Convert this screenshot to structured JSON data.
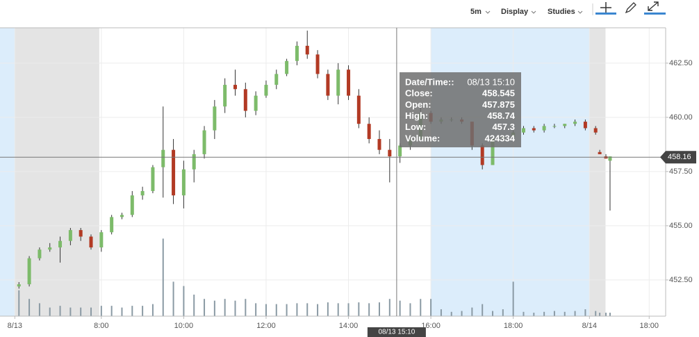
{
  "toolbar": {
    "interval": "5m",
    "display": "Display",
    "studies": "Studies"
  },
  "chart_data": {
    "type": "candlestick",
    "up_color": "#7dbb6a",
    "down_color": "#b23a24",
    "volume_color": "#8a9aa4",
    "xlim": [
      5.54,
      21.7
    ],
    "ylim": [
      450.83,
      464.13
    ],
    "vlim": [
      0,
      100
    ],
    "xticks": [
      {
        "value": 5.9,
        "label": "8/13"
      },
      {
        "value": 8,
        "label": "8:00"
      },
      {
        "value": 10,
        "label": "10:00"
      },
      {
        "value": 12,
        "label": "12:00"
      },
      {
        "value": 14,
        "label": "14:00"
      },
      {
        "value": 16,
        "label": "16:00"
      },
      {
        "value": 18,
        "label": "18:00"
      },
      {
        "value": 19.85,
        "label": "8/14"
      },
      {
        "value": 21.3,
        "label": "18:00"
      }
    ],
    "yticks": [
      {
        "value": 452.5,
        "label": "452.50"
      },
      {
        "value": 455,
        "label": "455.00"
      },
      {
        "value": 457.5,
        "label": "457.50"
      },
      {
        "value": 460,
        "label": "460.00"
      },
      {
        "value": 462.5,
        "label": "462.50"
      }
    ],
    "grid": true,
    "shading": [
      {
        "from": 5.54,
        "to": 5.9,
        "color": "#dcedfb"
      },
      {
        "from": 5.9,
        "to": 7.95,
        "color": "#e4e4e4"
      },
      {
        "from": 16,
        "to": 19.85,
        "color": "#dcedfb"
      },
      {
        "from": 19.85,
        "to": 20.24,
        "color": "#e4e4e4"
      }
    ],
    "candles": [
      [
        6.0,
        452.2,
        452.4,
        452.1,
        452.3,
        30
      ],
      [
        6.25,
        452.3,
        453.6,
        452.2,
        453.5,
        20
      ],
      [
        6.5,
        453.5,
        454.0,
        453.4,
        453.9,
        15
      ],
      [
        6.75,
        453.9,
        454.2,
        453.8,
        454.0,
        10
      ],
      [
        7.0,
        454.0,
        454.5,
        453.3,
        454.3,
        12
      ],
      [
        7.25,
        454.3,
        454.9,
        454.1,
        454.8,
        10
      ],
      [
        7.5,
        454.8,
        454.9,
        454.3,
        454.5,
        10
      ],
      [
        7.75,
        454.5,
        454.6,
        453.9,
        454.0,
        10
      ],
      [
        8.0,
        454.0,
        454.8,
        453.8,
        454.7,
        12
      ],
      [
        8.25,
        454.7,
        455.5,
        454.6,
        455.4,
        12
      ],
      [
        8.5,
        455.4,
        455.6,
        455.3,
        455.5,
        10
      ],
      [
        8.75,
        455.5,
        456.6,
        455.4,
        456.4,
        12
      ],
      [
        9.0,
        456.4,
        456.8,
        456.2,
        456.6,
        12
      ],
      [
        9.25,
        456.6,
        457.8,
        456.5,
        457.7,
        14
      ],
      [
        9.5,
        457.7,
        460.5,
        456.3,
        458.5,
        90
      ],
      [
        9.75,
        458.5,
        459.0,
        456.0,
        456.4,
        40
      ],
      [
        10.0,
        456.4,
        458.0,
        455.8,
        457.6,
        35
      ],
      [
        10.25,
        457.6,
        458.5,
        457.0,
        458.3,
        25
      ],
      [
        10.5,
        458.3,
        459.6,
        458.1,
        459.4,
        20
      ],
      [
        10.75,
        459.4,
        460.8,
        459.0,
        460.5,
        18
      ],
      [
        11.0,
        460.5,
        461.8,
        460.2,
        461.5,
        20
      ],
      [
        11.25,
        461.5,
        462.2,
        461.0,
        461.3,
        18
      ],
      [
        11.5,
        461.3,
        461.6,
        460.0,
        460.3,
        20
      ],
      [
        11.75,
        460.3,
        461.2,
        460.1,
        461.0,
        15
      ],
      [
        12.0,
        461.0,
        461.7,
        460.9,
        461.5,
        14
      ],
      [
        12.25,
        461.5,
        462.2,
        461.3,
        462.0,
        14
      ],
      [
        12.5,
        462.0,
        462.7,
        461.9,
        462.6,
        14
      ],
      [
        12.75,
        462.6,
        463.5,
        462.4,
        463.3,
        15
      ],
      [
        13.0,
        463.3,
        464.0,
        462.7,
        462.9,
        15
      ],
      [
        13.25,
        462.9,
        463.1,
        461.8,
        462.0,
        14
      ],
      [
        13.5,
        462.0,
        462.2,
        460.8,
        461.0,
        16
      ],
      [
        13.75,
        461.0,
        462.5,
        460.6,
        462.2,
        15
      ],
      [
        14.0,
        462.2,
        462.4,
        460.8,
        461.0,
        15
      ],
      [
        14.25,
        461.0,
        461.3,
        459.5,
        459.7,
        16
      ],
      [
        14.5,
        459.7,
        460.0,
        458.8,
        459.0,
        15
      ],
      [
        14.75,
        459.0,
        459.4,
        458.3,
        458.5,
        16
      ],
      [
        15.0,
        458.5,
        459.0,
        457.0,
        458.2,
        20
      ],
      [
        15.25,
        458.2,
        458.8,
        457.9,
        458.7,
        18
      ],
      [
        15.5,
        458.7,
        459.2,
        458.5,
        459.0,
        15
      ],
      [
        15.75,
        459.0,
        460.5,
        458.9,
        460.2,
        20
      ],
      [
        16.0,
        460.2,
        460.3,
        459.7,
        459.8,
        20
      ],
      [
        16.25,
        459.8,
        460.0,
        459.7,
        459.9,
        8
      ],
      [
        16.5,
        459.9,
        460.0,
        459.8,
        459.9,
        5
      ],
      [
        16.75,
        459.9,
        460.0,
        459.7,
        459.8,
        6
      ],
      [
        17.0,
        459.8,
        459.8,
        458.5,
        458.7,
        10
      ],
      [
        17.25,
        458.7,
        458.8,
        457.6,
        457.8,
        14
      ],
      [
        17.5,
        457.8,
        459.1,
        457.8,
        459.0,
        6
      ],
      [
        17.75,
        459.0,
        459.2,
        458.9,
        459.1,
        8
      ],
      [
        18.0,
        459.1,
        459.4,
        459.0,
        459.3,
        40
      ],
      [
        18.25,
        459.3,
        459.6,
        459.2,
        459.5,
        5
      ],
      [
        18.5,
        459.5,
        459.6,
        459.3,
        459.4,
        4
      ],
      [
        18.75,
        459.4,
        459.7,
        459.3,
        459.6,
        5
      ],
      [
        19.0,
        459.6,
        459.7,
        459.5,
        459.6,
        6
      ],
      [
        19.25,
        459.6,
        459.7,
        459.5,
        459.7,
        5
      ],
      [
        19.5,
        459.7,
        459.9,
        459.6,
        459.8,
        6
      ],
      [
        19.75,
        459.8,
        459.9,
        459.4,
        459.5,
        8
      ],
      [
        20.0,
        459.5,
        459.6,
        459.2,
        459.3,
        6
      ],
      [
        20.1,
        458.4,
        458.5,
        458.3,
        458.3,
        4
      ],
      [
        20.25,
        458.2,
        458.3,
        458.1,
        458.1,
        4
      ],
      [
        20.35,
        458.0,
        458.2,
        455.7,
        458.2,
        4
      ]
    ],
    "crosshair": {
      "x": 15.17,
      "x_label": "08/13 15:10",
      "price": 458.16
    },
    "tooltip": {
      "rows": [
        [
          "Date/Time::",
          "08/13 15:10"
        ],
        [
          "Close:",
          458.545
        ],
        [
          "Open:",
          457.875
        ],
        [
          "High:",
          458.74
        ],
        [
          "Low:",
          457.3
        ],
        [
          "Volume:",
          424334
        ]
      ]
    }
  }
}
